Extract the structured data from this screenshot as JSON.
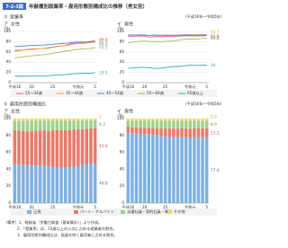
{
  "figure": {
    "number": "7-2-3図",
    "title": "年齢層別就業率・雇用形態別構成比の推移（男女別）"
  },
  "sections": [
    {
      "label": "①",
      "heading": "就業率",
      "period": "（平成16年～令和5年）"
    },
    {
      "label": "②",
      "heading": "雇用形態別構成比",
      "period": "（平成16年～令和5年）"
    }
  ],
  "chart_data": [
    {
      "type": "line",
      "panel": "ア",
      "title": "女性",
      "unit": "（%）",
      "categories": [
        "平成16",
        null,
        null,
        null,
        "20",
        null,
        null,
        null,
        null,
        "25",
        null,
        null,
        null,
        null,
        null,
        "令和元",
        null,
        null,
        null,
        "5"
      ],
      "ylim": [
        0,
        100
      ],
      "yticks": [
        0,
        20,
        40,
        60,
        80,
        100
      ],
      "series": [
        {
          "name": "25～34歳",
          "color": "#e0609a",
          "values": [
            61.4,
            62.7,
            63.8,
            64.9,
            65.6,
            66.0,
            66.5,
            67.0,
            68.2,
            69.7,
            70.8,
            71.6,
            72.7,
            75.7,
            76.9,
            77.6,
            77.4,
            79.4,
            80.6,
            82.8
          ]
        },
        {
          "name": "35～44歳",
          "color": "#f0a030",
          "values": [
            63.4,
            63.6,
            64.0,
            64.4,
            64.6,
            65.5,
            66.7,
            66.5,
            67.1,
            69.2,
            70.1,
            71.8,
            72.7,
            73.4,
            75.8,
            76.7,
            76.0,
            77.4,
            78.4,
            78.6
          ]
        },
        {
          "name": "45～54歳",
          "color": "#4a86c8",
          "values": [
            70.5,
            71.1,
            71.6,
            72.1,
            72.5,
            72.8,
            73.1,
            73.5,
            74.2,
            74.8,
            75.8,
            76.3,
            76.9,
            77.6,
            78.9,
            79.3,
            79.2,
            79.4,
            80.0,
            80.3
          ]
        },
        {
          "name": "55～64歳",
          "color": "#9ac24a",
          "values": [
            48.5,
            49.2,
            50.4,
            51.7,
            52.6,
            53.2,
            54.1,
            54.7,
            56.1,
            57.5,
            58.8,
            59.7,
            61.5,
            62.5,
            64.6,
            65.1,
            65.8,
            66.1,
            66.8,
            68.5
          ]
        },
        {
          "name": "65歳以上",
          "color": "#30a8b0",
          "values": [
            12.9,
            12.7,
            12.7,
            12.9,
            12.9,
            13.0,
            13.1,
            13.1,
            13.4,
            14.3,
            15.2,
            15.3,
            15.9,
            16.3,
            17.4,
            17.8,
            18.0,
            18.2,
            18.4,
            19.5
          ]
        }
      ]
    },
    {
      "type": "line",
      "panel": "イ",
      "title": "男性",
      "unit": "（%）",
      "categories": [
        "平成16",
        null,
        null,
        null,
        "20",
        null,
        null,
        null,
        null,
        "25",
        null,
        null,
        null,
        null,
        null,
        "令和元",
        null,
        null,
        null,
        "5"
      ],
      "ylim": [
        0,
        100
      ],
      "yticks": [
        0,
        20,
        40,
        60,
        80,
        100
      ],
      "series": [
        {
          "color": "#e0609a",
          "values": [
            90.4,
            90.5,
            90.9,
            91.2,
            91.0,
            89.1,
            89.7,
            89.7,
            89.7,
            90.3,
            90.5,
            90.4,
            90.8,
            91.2,
            91.6,
            91.4,
            91.1,
            91.2,
            91.3,
            91.6
          ]
        },
        {
          "color": "#f0a030",
          "values": [
            92.6,
            92.6,
            92.8,
            92.9,
            92.8,
            92.0,
            92.8,
            92.2,
            92.3,
            92.6,
            92.9,
            92.8,
            93.1,
            93.3,
            93.4,
            93.6,
            93.4,
            93.6,
            93.7,
            93.7
          ]
        },
        {
          "color": "#4a86c8",
          "values": [
            93.0,
            93.1,
            93.1,
            93.2,
            93.1,
            92.3,
            92.8,
            92.6,
            92.6,
            92.4,
            92.7,
            92.4,
            92.7,
            92.8,
            93.0,
            92.9,
            92.6,
            92.8,
            92.9,
            93.2
          ]
        },
        {
          "color": "#9ac24a",
          "values": [
            78.1,
            78.9,
            79.9,
            81.1,
            81.2,
            80.7,
            80.2,
            80.5,
            80.2,
            80.6,
            81.0,
            81.5,
            82.7,
            83.8,
            85.0,
            85.4,
            85.3,
            85.6,
            86.0,
            86.9
          ]
        },
        {
          "color": "#30a8b0",
          "values": [
            28.4,
            28.7,
            29.2,
            29.7,
            29.8,
            29.1,
            28.1,
            27.8,
            28.3,
            29.8,
            30.9,
            31.3,
            31.8,
            32.2,
            33.2,
            34.1,
            33.7,
            33.9,
            33.9,
            34.0
          ]
        }
      ]
    },
    {
      "type": "stacked-bar",
      "panel": "ア",
      "title": "女性",
      "unit": "（%）",
      "categories": [
        "平成16",
        null,
        null,
        null,
        "20",
        null,
        null,
        null,
        null,
        "25",
        null,
        null,
        null,
        null,
        null,
        "令和元",
        null,
        null,
        null,
        "5"
      ],
      "ylim": [
        0,
        100
      ],
      "yticks": [
        0,
        20,
        40,
        60,
        80,
        100
      ],
      "series": [
        {
          "name": "正規",
          "color": "#7fb0e0",
          "values": [
            45.9,
            45.1,
            45.0,
            44.9,
            44.5,
            44.6,
            44.9,
            44.4,
            43.4,
            42.5,
            42.1,
            41.8,
            42.2,
            42.6,
            43.1,
            43.6,
            45.1,
            45.8,
            46.4,
            46.8
          ]
        },
        {
          "name": "パート・アルバイト",
          "color": "#e87a6a",
          "values": [
            40.6,
            40.8,
            40.4,
            40.5,
            40.6,
            41.3,
            41.1,
            41.8,
            42.0,
            43.6,
            44.2,
            44.4,
            44.2,
            43.9,
            44.0,
            43.7,
            42.2,
            42.3,
            42.1,
            41.9
          ]
        },
        {
          "name": "派遣社員・契約社員・嘱託",
          "color": "#9fd08a",
          "values": [
            10.6,
            11.3,
            11.8,
            11.9,
            12.3,
            11.6,
            11.6,
            11.5,
            12.1,
            11.6,
            11.3,
            11.3,
            11.1,
            11.0,
            10.5,
            10.4,
            10.4,
            9.8,
            9.5,
            9.3
          ]
        },
        {
          "name": "その他",
          "color": "#f5d66a",
          "values": [
            2.9,
            2.8,
            2.8,
            2.7,
            2.6,
            2.5,
            2.4,
            2.3,
            2.5,
            2.3,
            2.4,
            2.5,
            2.5,
            2.5,
            2.4,
            2.3,
            2.3,
            2.1,
            2.0,
            2.0
          ]
        }
      ]
    },
    {
      "type": "stacked-bar",
      "panel": "イ",
      "title": "男性",
      "unit": "（%）",
      "categories": [
        "平成16",
        null,
        null,
        null,
        "20",
        null,
        null,
        null,
        null,
        "25",
        null,
        null,
        null,
        null,
        null,
        "令和元",
        null,
        null,
        null,
        "5"
      ],
      "ylim": [
        0,
        100
      ],
      "yticks": [
        0,
        20,
        40,
        60,
        80,
        100
      ],
      "series": [
        {
          "color": "#7fb0e0",
          "values": [
            84.1,
            82.6,
            82.3,
            81.7,
            81.3,
            81.6,
            81.1,
            80.2,
            79.3,
            78.8,
            78.3,
            78.1,
            78.0,
            78.1,
            77.8,
            77.1,
            77.8,
            78.2,
            77.9,
            77.4
          ]
        },
        {
          "color": "#e87a6a",
          "values": [
            6.6,
            6.9,
            7.0,
            7.5,
            7.6,
            7.6,
            7.8,
            8.5,
            8.9,
            9.4,
            9.8,
            10.0,
            10.1,
            10.2,
            10.6,
            11.0,
            10.6,
            10.6,
            10.8,
            11.1
          ]
        },
        {
          "color": "#9fd08a",
          "values": [
            7.0,
            8.0,
            8.3,
            8.4,
            8.8,
            8.6,
            8.9,
            9.0,
            9.3,
            9.2,
            9.3,
            9.4,
            9.4,
            9.3,
            9.2,
            9.4,
            9.1,
            8.8,
            8.9,
            8.9
          ]
        },
        {
          "color": "#f5d66a",
          "values": [
            2.3,
            2.5,
            2.4,
            2.4,
            2.3,
            2.2,
            2.2,
            2.3,
            2.5,
            2.6,
            2.6,
            2.5,
            2.5,
            2.4,
            2.4,
            2.5,
            2.5,
            2.4,
            2.4,
            2.6
          ]
        }
      ]
    }
  ],
  "notes": [
    "（備考）1．総務省「労働力調査（基本集計）」より作成。",
    "2．「就業率」は、15歳以上の人口に占める就業者の割合。",
    "3．雇用形態別構成比は、役員を除く雇用者に占める割合。"
  ]
}
